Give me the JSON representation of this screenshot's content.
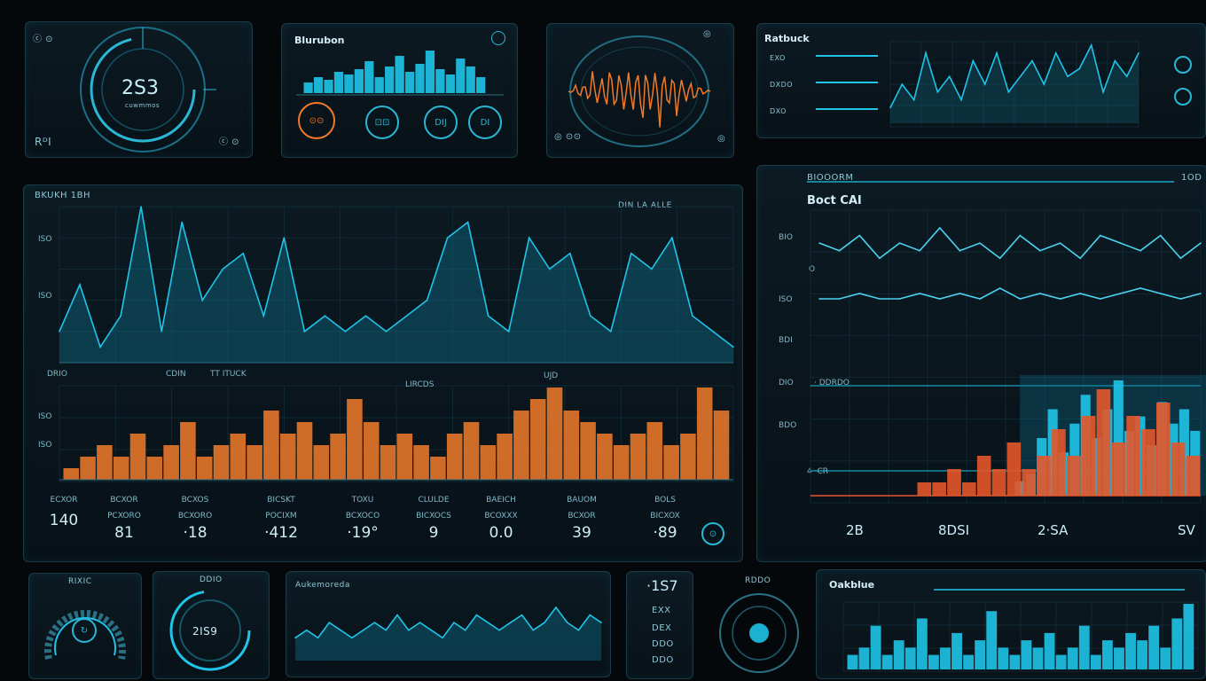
{
  "colors": {
    "accent": "#1fc4e8",
    "orange": "#f07a28",
    "panel": "#0b1820",
    "line": "#2ab7d6"
  },
  "gauge_panel": {
    "value": "2S3",
    "sub": "cuwmmos",
    "corner_tl": "ⓒ ⊙",
    "corner_bl": "RᴰI",
    "corner_br": "ⓒ ⊙"
  },
  "bars_panel": {
    "title": "Blurubon",
    "buttons": [
      "⊙⊙",
      "⊡⊡",
      "DIJ",
      "DI"
    ]
  },
  "wave_panel": {
    "corner_tl": "◎",
    "corner_bl": "◎ ⊙⊙",
    "corner_br": "◎"
  },
  "line_panel_top": {
    "title": "Ratbuck",
    "labels": [
      "EXO",
      "DXDO",
      "DXO"
    ]
  },
  "main_left": {
    "title": "BKUKH 1BH",
    "header_right": "DIN  LA ALLE",
    "y_labels": [
      "ISO",
      "ISO",
      "ISO",
      "ISO"
    ],
    "mid_labels": [
      "DRIO",
      "CDIN",
      "TT ITUCK",
      "LIRCDS",
      "UJD"
    ],
    "readouts": [
      {
        "top": "ECXOR",
        "sub": "",
        "value": "140"
      },
      {
        "top": "BCXOR",
        "sub": "PCXORO",
        "value": "81"
      },
      {
        "top": "BCXOS",
        "sub": "BCXORO",
        "value": "·18"
      },
      {
        "top": "BICSKT",
        "sub": "POCIXM",
        "value": "·412"
      },
      {
        "top": "TOXU",
        "sub": "BCXOCO",
        "value": "·19°"
      },
      {
        "top": "CLULDE",
        "sub": "BICXOCS",
        "value": "9"
      },
      {
        "top": "BAEICH",
        "sub": "BCOXXX",
        "value": "0.0"
      },
      {
        "top": "BAUOM",
        "sub": "BCXOR",
        "value": "39"
      },
      {
        "top": "BOLS",
        "sub": "BICXOX",
        "value": "·89"
      }
    ]
  },
  "main_right": {
    "header": "BIOOORM",
    "header_right": "1OD",
    "subtitle": "Boct CAI",
    "y_labels": [
      "BIO",
      "O",
      "ISO",
      "BDI",
      "DIO",
      "BDO",
      "4 ·CR"
    ],
    "mid_label": "· DDRDO",
    "bottom_labels": [
      "2B",
      "8DSI",
      "2·SA",
      "SV"
    ]
  },
  "bottom": {
    "gauge1_title": "RIXIC",
    "gauge2_title": "DDIO",
    "gauge2_value": "2IS9",
    "wave_title": "Aukemoreda",
    "side_values": [
      "·1S7",
      "EXX",
      "DEX",
      "DDO",
      "DDO"
    ],
    "knob_title": "RDDO",
    "spark_title": "Oakblue"
  },
  "chart_data": [
    {
      "type": "bar",
      "title": "Blurubon",
      "values": [
        4,
        6,
        5,
        8,
        7,
        9,
        12,
        6,
        10,
        14,
        8,
        11,
        16,
        9,
        7,
        13,
        10,
        6
      ]
    },
    {
      "type": "line",
      "title": "Ratbuck",
      "values": [
        2,
        5,
        3,
        9,
        4,
        6,
        3,
        8,
        5,
        9,
        4,
        6,
        8,
        5,
        9,
        6,
        7,
        10,
        4,
        8,
        6,
        9
      ]
    },
    {
      "type": "area",
      "title": "BKUKH 1BH",
      "values": [
        2,
        5,
        1,
        3,
        10,
        2,
        9,
        4,
        6,
        7,
        3,
        8,
        2,
        3,
        2,
        3,
        2,
        3,
        4,
        8,
        9,
        3,
        2,
        8,
        6,
        7,
        3,
        2,
        7,
        6,
        8,
        3,
        2,
        1
      ]
    },
    {
      "type": "bar",
      "title": "BKUKH 1BH lower",
      "values": [
        1,
        2,
        3,
        2,
        4,
        2,
        3,
        5,
        2,
        3,
        4,
        3,
        6,
        4,
        5,
        3,
        4,
        7,
        5,
        3,
        4,
        3,
        2,
        4,
        5,
        3,
        4,
        6,
        7,
        8,
        6,
        5,
        4,
        3,
        4,
        5,
        3,
        4,
        8,
        6
      ]
    },
    {
      "type": "line",
      "title": "Boct CAI",
      "series": [
        {
          "values": [
            5,
            4,
            6,
            3,
            5,
            4,
            7,
            4,
            5,
            3,
            6,
            4,
            5,
            3,
            6,
            5,
            4,
            6,
            3,
            5
          ]
        },
        {
          "values": [
            3,
            3,
            4,
            3,
            3,
            4,
            3,
            4,
            3,
            5,
            3,
            4,
            3,
            4,
            3,
            4,
            5,
            4,
            3,
            4
          ]
        }
      ]
    },
    {
      "type": "area",
      "title": "Aukemoreda",
      "values": [
        3,
        4,
        3,
        5,
        4,
        3,
        4,
        5,
        4,
        6,
        4,
        5,
        4,
        3,
        5,
        4,
        6,
        5,
        4,
        5,
        6,
        4,
        5,
        7,
        5,
        4,
        6,
        5
      ]
    },
    {
      "type": "bar",
      "title": "Oakblue",
      "values": [
        2,
        3,
        6,
        2,
        4,
        3,
        7,
        2,
        3,
        5,
        2,
        4,
        8,
        3,
        2,
        4,
        3,
        5,
        2,
        3,
        6,
        2,
        4,
        3,
        5,
        4,
        6,
        3,
        7,
        9
      ]
    }
  ]
}
